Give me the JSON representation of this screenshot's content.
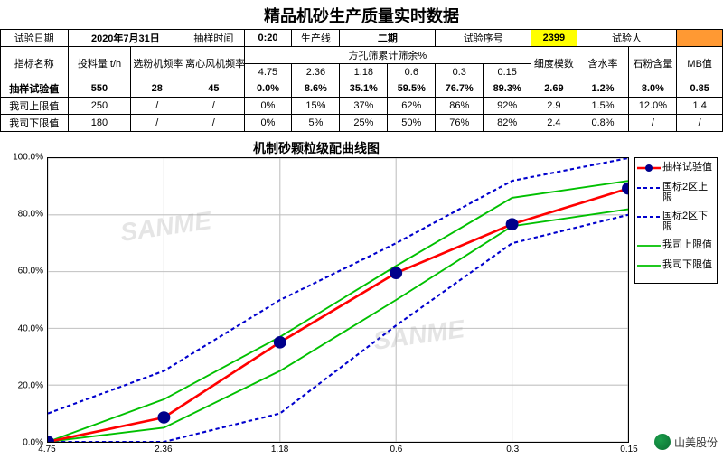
{
  "title": "精品机砂生产质量实时数据",
  "header": {
    "labels": {
      "test_date": "试验日期",
      "sample_time": "抽样时间",
      "prod_line": "生产线",
      "test_no": "试验序号",
      "tester": "试验人",
      "indicator": "指标名称",
      "feed_rate": "投料量 t/h",
      "powder_freq": "选粉机频率HZ",
      "fan_freq": "离心风机频率HZ",
      "sieve_group": "方孔筛累计筛余%",
      "fineness": "细度模数",
      "water": "含水率",
      "stone": "石粉含量",
      "mb": "MB值"
    },
    "test_date": "2020年7月31日",
    "sample_time": "0:20",
    "prod_line": "二期",
    "test_no": "2399",
    "tester": "",
    "sieve_sizes": [
      "4.75",
      "2.36",
      "1.18",
      "0.6",
      "0.3",
      "0.15"
    ]
  },
  "rows": [
    {
      "name": "抽样试验值",
      "bold": true,
      "feed": "550",
      "pfreq": "28",
      "ffreq": "45",
      "sieve": [
        "0.0%",
        "8.6%",
        "35.1%",
        "59.5%",
        "76.7%",
        "89.3%"
      ],
      "fine": "2.69",
      "water": "1.2%",
      "stone": "8.0%",
      "mb": "0.85"
    },
    {
      "name": "我司上限值",
      "bold": false,
      "feed": "250",
      "pfreq": "/",
      "ffreq": "/",
      "sieve": [
        "0%",
        "15%",
        "37%",
        "62%",
        "86%",
        "92%"
      ],
      "fine": "2.9",
      "water": "1.5%",
      "stone": "12.0%",
      "mb": "1.4"
    },
    {
      "name": "我司下限值",
      "bold": false,
      "feed": "180",
      "pfreq": "/",
      "ffreq": "/",
      "sieve": [
        "0%",
        "5%",
        "25%",
        "50%",
        "76%",
        "82%"
      ],
      "fine": "2.4",
      "water": "0.8%",
      "stone": "/",
      "mb": "/"
    }
  ],
  "chart": {
    "title": "机制砂颗粒级配曲线图",
    "x_categories": [
      "4.75",
      "2.36",
      "1.18",
      "0.6",
      "0.3",
      "0.15"
    ],
    "y_ticks": [
      0,
      20,
      40,
      60,
      80,
      100
    ],
    "y_format": "%",
    "ylim": [
      0,
      100
    ],
    "series": {
      "sample": {
        "label": "抽样试验值",
        "color": "#ff0000",
        "width": 2.5,
        "marker": "circle",
        "marker_fill": "#00008b",
        "marker_size": 6,
        "dash": "",
        "y": [
          0,
          8.6,
          35.1,
          59.5,
          76.7,
          89.3
        ]
      },
      "gb_upper": {
        "label": "国标2区上限",
        "color": "#0000cd",
        "width": 2,
        "marker": "",
        "dash": "4,3",
        "y": [
          10,
          25,
          50,
          70,
          92,
          100
        ]
      },
      "gb_lower": {
        "label": "国标2区下限",
        "color": "#0000cd",
        "width": 2,
        "marker": "",
        "dash": "4,3",
        "y": [
          0,
          0,
          10,
          41,
          70,
          80
        ]
      },
      "comp_upper": {
        "label": "我司上限值",
        "color": "#00c000",
        "width": 1.8,
        "marker": "",
        "dash": "",
        "y": [
          0,
          15,
          37,
          62,
          86,
          92
        ]
      },
      "comp_lower": {
        "label": "我司下限值",
        "color": "#00c000",
        "width": 1.8,
        "marker": "",
        "dash": "",
        "y": [
          0,
          5,
          25,
          50,
          76,
          82
        ]
      }
    },
    "legend_order": [
      "sample",
      "gb_upper",
      "gb_lower",
      "comp_upper",
      "comp_lower"
    ],
    "grid_color": "#c0c0c0",
    "background": "#ffffff"
  },
  "footer": {
    "brand": "山美股份"
  }
}
